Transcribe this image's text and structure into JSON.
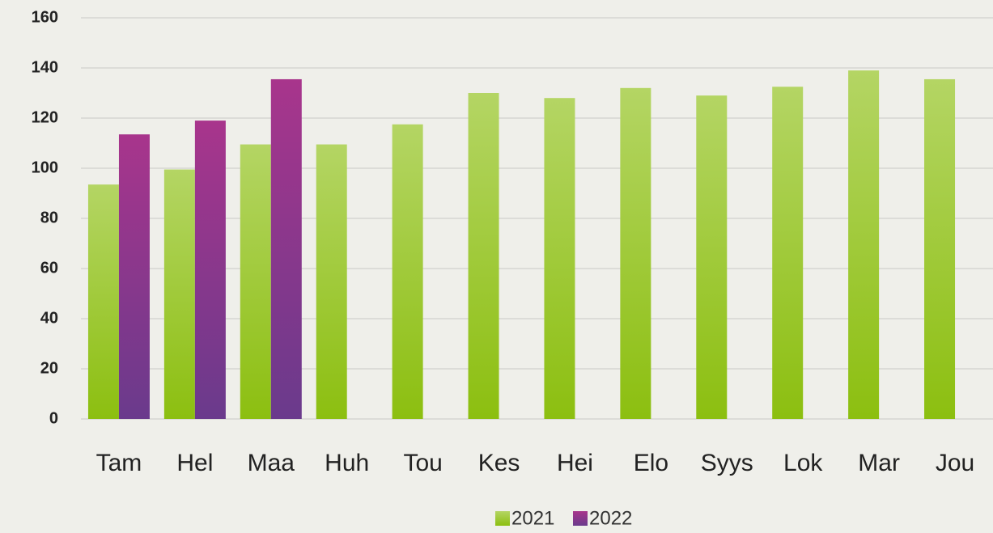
{
  "chart_data": {
    "type": "bar",
    "categories": [
      "Tam",
      "Hel",
      "Maa",
      "Huh",
      "Tou",
      "Kes",
      "Hei",
      "Elo",
      "Syys",
      "Lok",
      "Mar",
      "Jou"
    ],
    "series": [
      {
        "name": "2021",
        "color": "#8cbf10",
        "values": [
          93.5,
          99.5,
          109.5,
          109.5,
          117.5,
          130,
          128,
          132,
          129,
          132.5,
          139,
          135.5
        ]
      },
      {
        "name": "2022",
        "color": "#6a3a8c",
        "values": [
          113.5,
          119,
          135.5,
          null,
          null,
          null,
          null,
          null,
          null,
          null,
          null,
          null
        ]
      }
    ],
    "ylim": [
      0,
      160
    ],
    "yticks": [
      0,
      20,
      40,
      60,
      80,
      100,
      120,
      140,
      160
    ],
    "grid": true,
    "legend": "bottom"
  }
}
